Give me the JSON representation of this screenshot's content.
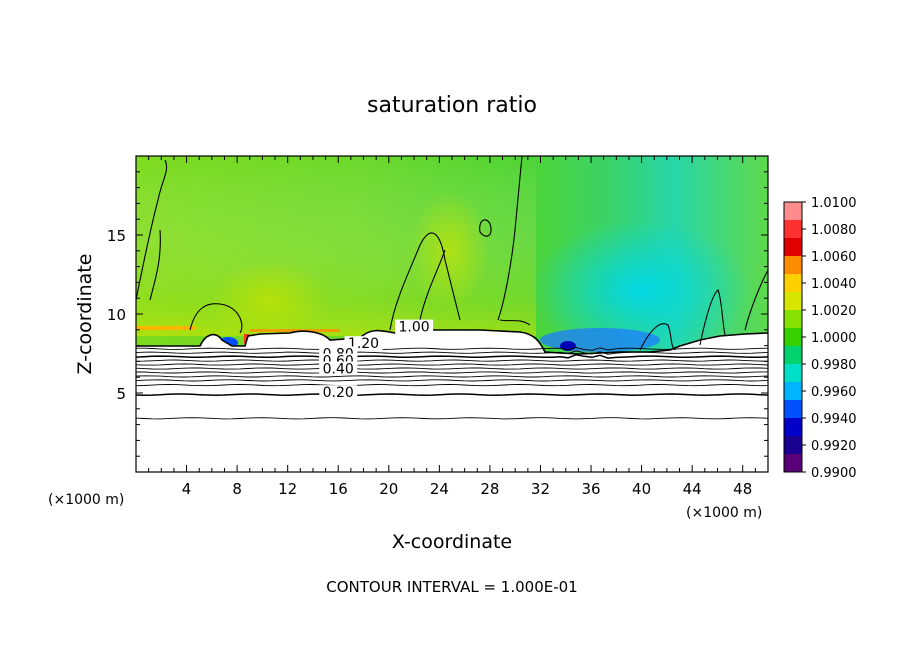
{
  "chart_data": {
    "type": "heatmap",
    "title": "saturation ratio",
    "xlabel": "X-coordinate",
    "ylabel": "Z-coordinate",
    "x_unit_label": "(×1000 m)",
    "x_unit_label_right": "(×1000 m)",
    "footer": "CONTOUR INTERVAL = 1.000E-01",
    "xlim": [
      0,
      50
    ],
    "ylim": [
      0,
      20
    ],
    "x_ticks": [
      4,
      8,
      12,
      16,
      20,
      24,
      28,
      32,
      36,
      40,
      44,
      48
    ],
    "y_ticks": [
      5,
      10,
      15
    ],
    "colorbar": {
      "min": 0.99,
      "max": 1.01,
      "labels": [
        "1.0100",
        "1.0080",
        "1.0060",
        "1.0040",
        "1.0020",
        "1.0000",
        "0.9980",
        "0.9960",
        "0.9940",
        "0.9920",
        "0.9900"
      ],
      "colors": [
        "#ff8c8c",
        "#ff3030",
        "#e10000",
        "#ff8c00",
        "#ffd000",
        "#d7e600",
        "#86e000",
        "#36d200",
        "#00d26e",
        "#00e0c8",
        "#00b4ff",
        "#0050ff",
        "#0000c8",
        "#1a0090",
        "#5a007a"
      ]
    },
    "contour_labels": [
      {
        "text": "1.00",
        "x": 22,
        "z": 8.95
      },
      {
        "text": "1.20",
        "x": 18,
        "z": 7.9
      },
      {
        "text": "0.80",
        "x": 16,
        "z": 7.25
      },
      {
        "text": "0.60",
        "x": 16,
        "z": 6.8
      },
      {
        "text": "0.40",
        "x": 16,
        "z": 6.3
      },
      {
        "text": "0.20",
        "x": 16,
        "z": 4.8
      }
    ],
    "contour_levels_z": [
      3.4,
      4.9,
      5.5,
      5.8,
      6.05,
      6.3,
      6.55,
      6.8,
      7.05,
      7.3,
      7.55,
      7.8
    ]
  }
}
